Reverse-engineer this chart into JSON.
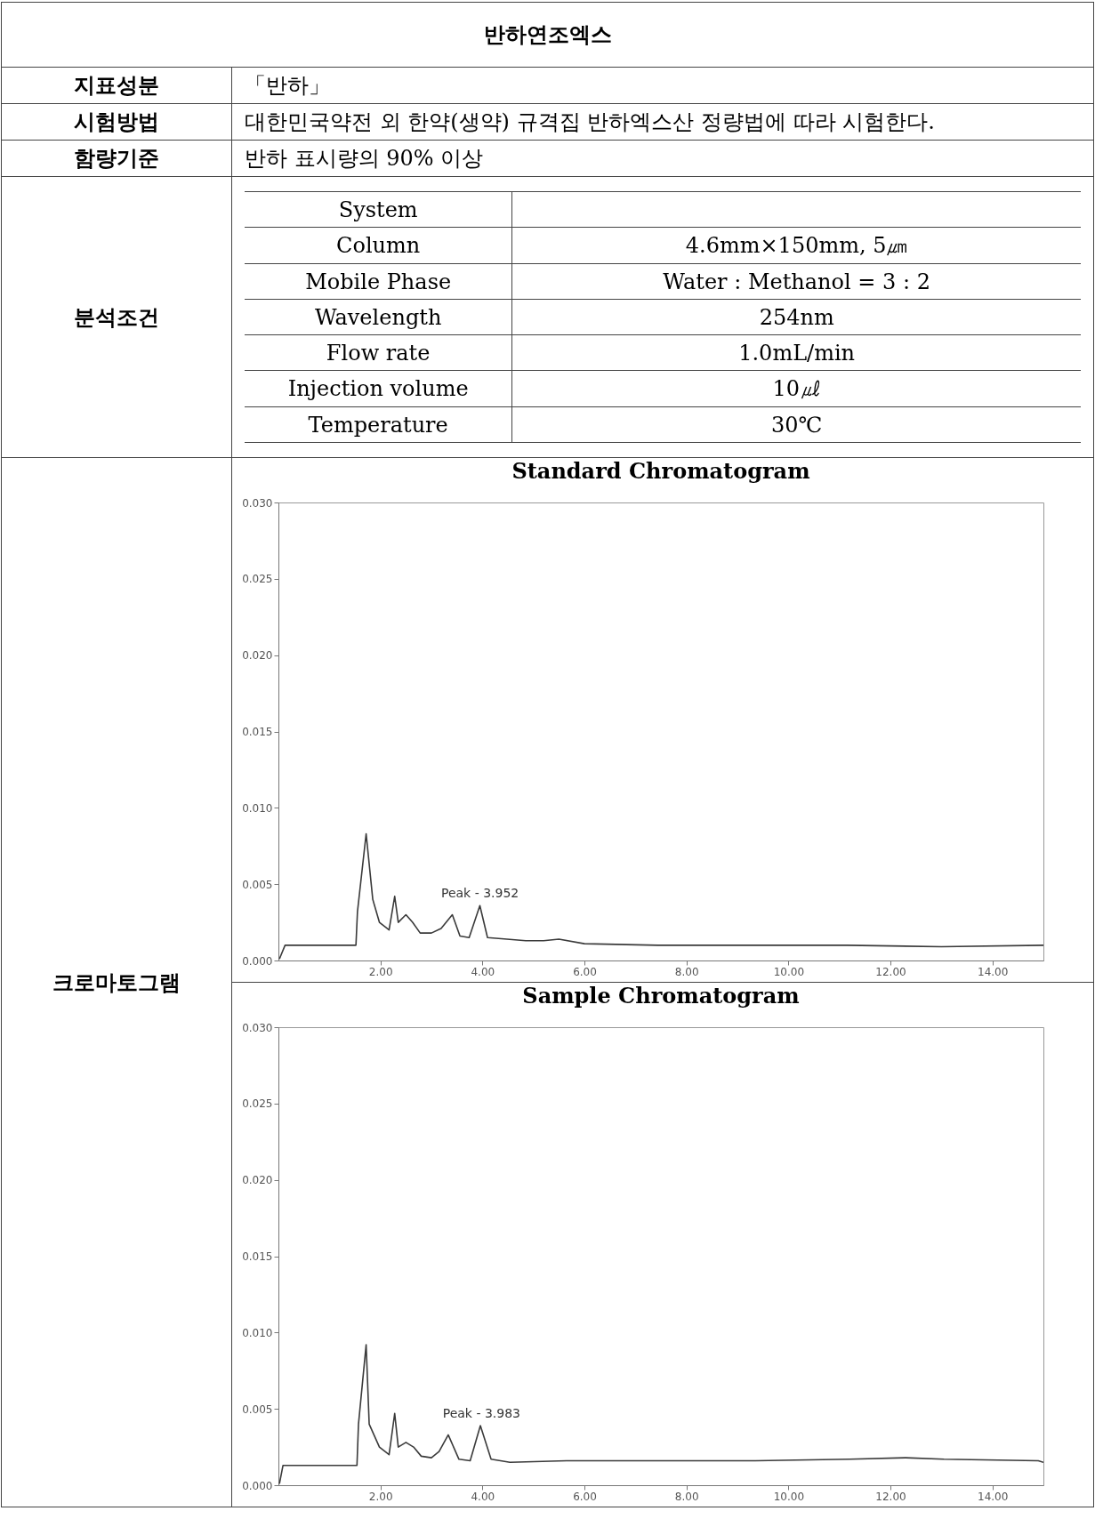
{
  "chart_data": [
    {
      "type": "other",
      "title": "반하연조엑스",
      "annotations": [
        "지표성분",
        "「반하」",
        "시험방법",
        "대한민국약전 외 한약(생약) 규격집 반하엑스산 정량법에 따라 시험한다.",
        "함량기준",
        "반하 표시량의 90% 이상",
        "분석조건",
        "System",
        "Column",
        "Mobile Phase",
        "Wavelength",
        "Flow rate",
        "Injection volume",
        "Temperature",
        "4.6mm×150mm, 5㎛",
        "Water : Methanol = 3 : 2",
        "254nm",
        "1.0mL/min",
        "10㎕",
        "30℃",
        "크로마토그램"
      ]
    },
    {
      "type": "line",
      "title": "Standard Chromatogram",
      "color": "#3a3a3a",
      "xlim": [
        0,
        15
      ],
      "ylim": [
        0,
        0.03
      ],
      "xticks": [
        {
          "value": 2,
          "label": "2.00"
        },
        {
          "value": 4,
          "label": "4.00"
        },
        {
          "value": 6,
          "label": "6.00"
        },
        {
          "value": 8,
          "label": "8.00"
        },
        {
          "value": 10,
          "label": "10.00"
        },
        {
          "value": 12,
          "label": "12.00"
        },
        {
          "value": 14,
          "label": "14.00"
        }
      ],
      "yticks": [
        {
          "value": 0,
          "label": "0.000"
        },
        {
          "value": 0.005,
          "label": "0.005"
        },
        {
          "value": 0.01,
          "label": "0.010"
        },
        {
          "value": 0.015,
          "label": "0.015"
        },
        {
          "value": 0.02,
          "label": "0.020"
        },
        {
          "value": 0.025,
          "label": "0.025"
        },
        {
          "value": 0.03,
          "label": "0.030"
        }
      ],
      "x": [
        0.02,
        0.13,
        1.52,
        1.55,
        1.72,
        1.85,
        1.98,
        2.17,
        2.28,
        2.35,
        2.5,
        2.63,
        2.78,
        3.0,
        3.19,
        3.41,
        3.56,
        3.74,
        3.95,
        4.1,
        4.48,
        4.85,
        5.2,
        5.5,
        6.0,
        7.44,
        9.3,
        11.15,
        13.0,
        15.0
      ],
      "values": [
        0.0001,
        0.001,
        0.001,
        0.0032,
        0.0083,
        0.004,
        0.0025,
        0.002,
        0.0042,
        0.0025,
        0.003,
        0.0025,
        0.0018,
        0.0018,
        0.0021,
        0.003,
        0.0016,
        0.0015,
        0.0036,
        0.0015,
        0.0014,
        0.0013,
        0.0013,
        0.0014,
        0.0011,
        0.001,
        0.001,
        0.001,
        0.0009,
        0.001
      ],
      "annotations": [
        {
          "text": "Peak - 3.952",
          "x": 3.952,
          "y": 0.0036
        }
      ],
      "grid": false
    },
    {
      "type": "line",
      "title": "Sample Chromatogram",
      "color": "#3a3a3a",
      "xlim": [
        0,
        15
      ],
      "ylim": [
        0,
        0.03
      ],
      "xticks": [
        {
          "value": 2,
          "label": "2.00"
        },
        {
          "value": 4,
          "label": "4.00"
        },
        {
          "value": 6,
          "label": "6.00"
        },
        {
          "value": 8,
          "label": "8.00"
        },
        {
          "value": 10,
          "label": "10.00"
        },
        {
          "value": 12,
          "label": "12.00"
        },
        {
          "value": 14,
          "label": "14.00"
        }
      ],
      "yticks": [
        {
          "value": 0,
          "label": "0.000"
        },
        {
          "value": 0.005,
          "label": "0.005"
        },
        {
          "value": 0.01,
          "label": "0.010"
        },
        {
          "value": 0.015,
          "label": "0.015"
        },
        {
          "value": 0.02,
          "label": "0.020"
        },
        {
          "value": 0.025,
          "label": "0.025"
        },
        {
          "value": 0.03,
          "label": "0.030"
        }
      ],
      "x": [
        0.02,
        0.09,
        1.54,
        1.57,
        1.72,
        1.78,
        1.98,
        2.17,
        2.28,
        2.35,
        2.5,
        2.65,
        2.8,
        3.0,
        3.15,
        3.33,
        3.54,
        3.76,
        3.96,
        4.17,
        4.54,
        5.65,
        7.5,
        9.35,
        11.2,
        12.3,
        13.05,
        14.9,
        15.0
      ],
      "values": [
        0.0001,
        0.0013,
        0.0013,
        0.004,
        0.0092,
        0.004,
        0.0025,
        0.002,
        0.0047,
        0.0025,
        0.0028,
        0.0025,
        0.0019,
        0.0018,
        0.0022,
        0.0033,
        0.0017,
        0.0016,
        0.0039,
        0.0017,
        0.0015,
        0.0016,
        0.0016,
        0.0016,
        0.0017,
        0.0018,
        0.0017,
        0.0016,
        0.0015
      ],
      "annotations": [
        {
          "text": "Peak - 3.983",
          "x": 3.983,
          "y": 0.0039
        }
      ],
      "grid": false
    }
  ]
}
